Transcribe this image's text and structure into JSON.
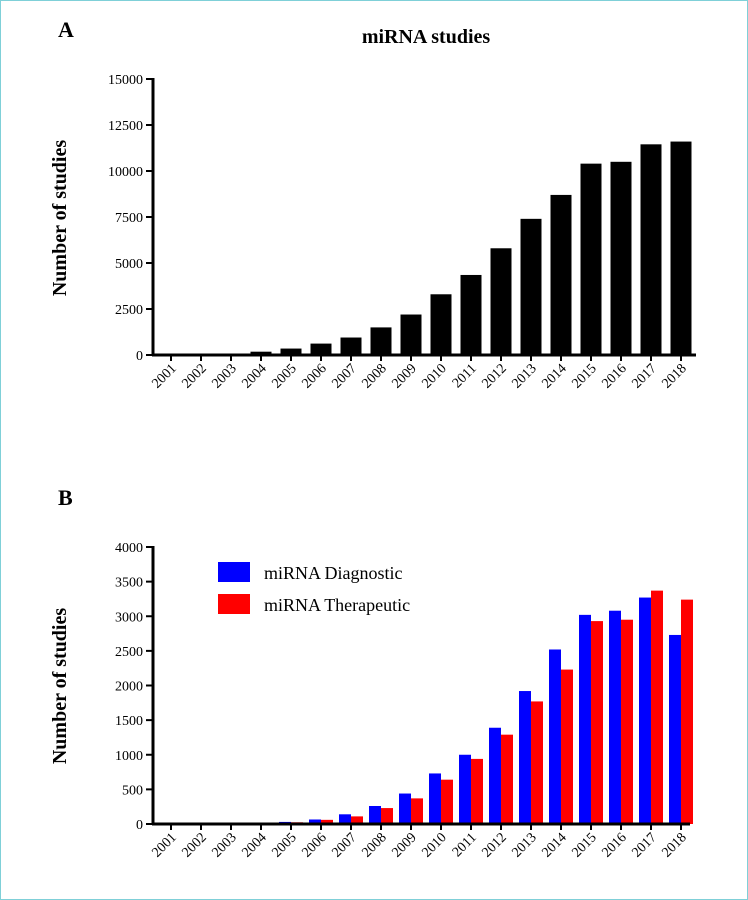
{
  "chart_data": [
    {
      "panel": "A",
      "type": "bar",
      "title": "miRNA studies",
      "xlabel": "",
      "ylabel": "Number of studies",
      "ylim": [
        0,
        15000
      ],
      "yticks": [
        "0",
        "2500",
        "5000",
        "7500",
        "10000",
        "12500",
        "15000"
      ],
      "categories": [
        "2001",
        "2002",
        "2003",
        "2004",
        "2005",
        "2006",
        "2007",
        "2008",
        "2009",
        "2010",
        "2011",
        "2012",
        "2013",
        "2014",
        "2015",
        "2016",
        "2017",
        "2018"
      ],
      "series": [
        {
          "name": "miRNA studies",
          "color": "#000000",
          "values": [
            30,
            50,
            80,
            180,
            350,
            620,
            950,
            1500,
            2200,
            3300,
            4350,
            5800,
            7400,
            8700,
            10400,
            10500,
            11450,
            11600
          ]
        }
      ],
      "grid": false
    },
    {
      "panel": "B",
      "type": "bar",
      "title": "",
      "xlabel": "",
      "ylabel": "Number of studies",
      "ylim": [
        0,
        4000
      ],
      "yticks": [
        "0",
        "500",
        "1000",
        "1500",
        "2000",
        "2500",
        "3000",
        "3500",
        "4000"
      ],
      "categories": [
        "2001",
        "2002",
        "2003",
        "2004",
        "2005",
        "2006",
        "2007",
        "2008",
        "2009",
        "2010",
        "2011",
        "2012",
        "2013",
        "2014",
        "2015",
        "2016",
        "2017",
        "2018"
      ],
      "series": [
        {
          "name": "miRNA Diagnostic",
          "color": "#0000ff",
          "values": [
            2,
            3,
            5,
            10,
            30,
            65,
            140,
            260,
            440,
            730,
            1000,
            1390,
            1920,
            2520,
            3020,
            3080,
            3270,
            2730
          ]
        },
        {
          "name": "miRNA Therapeutic",
          "color": "#ff0000",
          "values": [
            2,
            3,
            5,
            10,
            25,
            60,
            110,
            230,
            370,
            640,
            940,
            1290,
            1770,
            2230,
            2930,
            2950,
            3370,
            3240
          ]
        }
      ],
      "legend": "top-left",
      "grid": false
    }
  ]
}
